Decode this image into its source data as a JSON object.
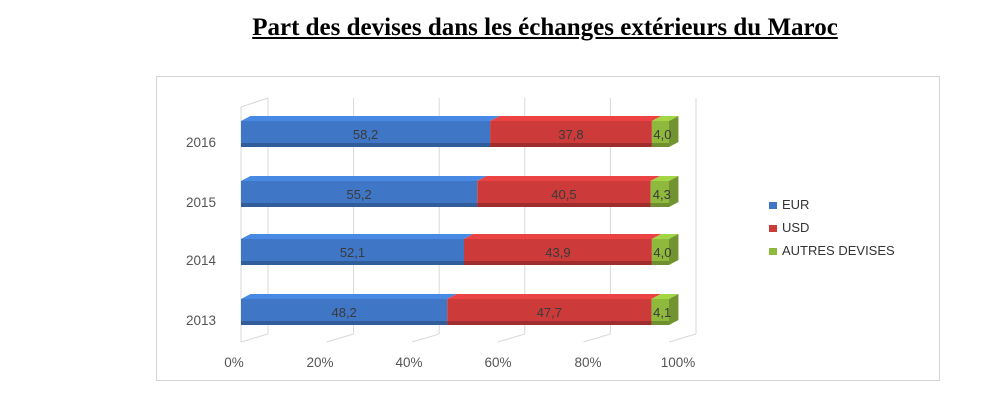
{
  "title": "Part des devises dans les échanges extérieurs du Maroc",
  "chart_data": {
    "type": "bar",
    "orientation": "horizontal",
    "stacked": "percent",
    "categories": [
      "2016",
      "2015",
      "2014",
      "2013"
    ],
    "series": [
      {
        "name": "EUR",
        "values": [
          58.2,
          55.2,
          52.1,
          48.2
        ],
        "labels": [
          "58,2",
          "55,2",
          "52,1",
          "48,2"
        ],
        "color": "#3f77c6"
      },
      {
        "name": "USD",
        "values": [
          37.8,
          40.5,
          43.9,
          47.7
        ],
        "labels": [
          "37,8",
          "40,5",
          "43,9",
          "47,7"
        ],
        "color": "#cc3a3a"
      },
      {
        "name": "AUTRES DEVISES",
        "values": [
          4.0,
          4.3,
          4.0,
          4.1
        ],
        "labels": [
          "4,0",
          "4,3",
          "4,0",
          "4,1"
        ],
        "color": "#8fb93c"
      }
    ],
    "x_ticks": [
      "0%",
      "20%",
      "40%",
      "60%",
      "80%",
      "100%"
    ],
    "xlim": [
      0,
      100
    ],
    "grid": true,
    "legend_position": "right"
  }
}
